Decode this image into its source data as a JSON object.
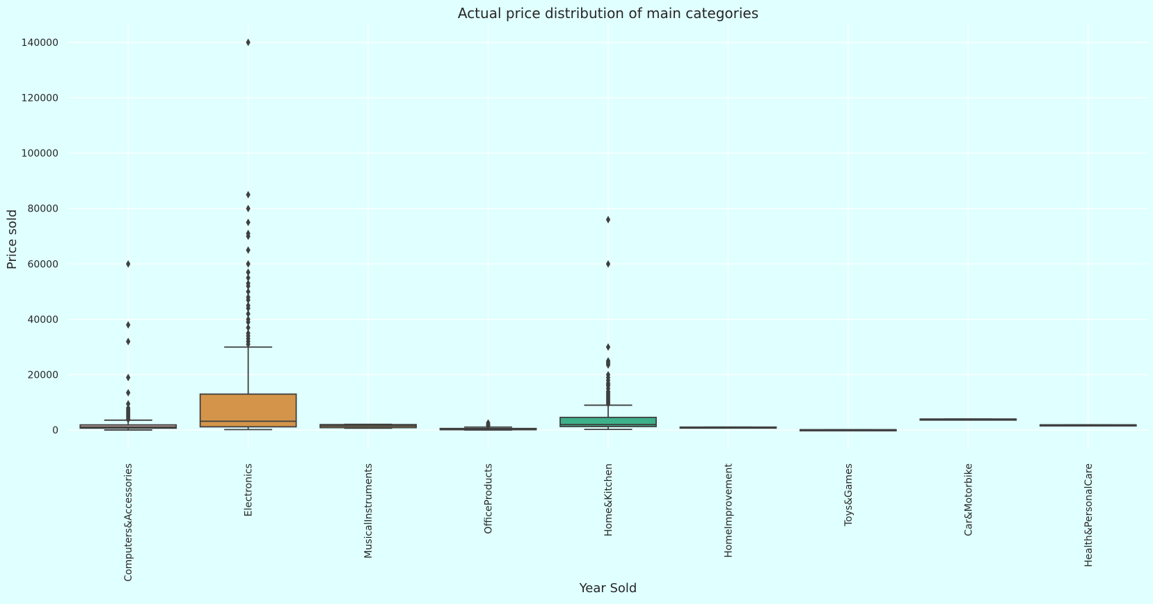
{
  "chart_data": {
    "type": "box",
    "title": "Actual price distribution of main categories",
    "xlabel": "Year Sold",
    "ylabel": "Price sold",
    "ylim": [
      -7000,
      147000
    ],
    "yticks": [
      0,
      20000,
      40000,
      60000,
      80000,
      100000,
      120000,
      140000
    ],
    "ytick_labels": [
      "0",
      "20000",
      "40000",
      "60000",
      "80000",
      "100000",
      "120000",
      "140000"
    ],
    "grid": true,
    "legend": "none",
    "colors": {
      "background": "#e0ffff",
      "grid": "#ffffff",
      "text": "#262626",
      "line": "#3f3f3f"
    },
    "categories": [
      {
        "name": "Computers&Accessories",
        "color": "#c4a3a0",
        "q1": 700,
        "median": 1100,
        "q3": 1900,
        "whisker_low": 50,
        "whisker_high": 3600,
        "outliers": [
          60000,
          38000,
          32000,
          19000,
          13500,
          9500,
          8000,
          7500,
          7000,
          6500,
          6000,
          5500,
          5000,
          4500,
          4000,
          3800
        ]
      },
      {
        "name": "Electronics",
        "color": "#d4954a",
        "q1": 1200,
        "median": 3200,
        "q3": 13000,
        "whisker_low": 200,
        "whisker_high": 30000,
        "outliers": [
          140000,
          85000,
          80000,
          75000,
          71000,
          70000,
          65000,
          60000,
          57000,
          55000,
          53000,
          52000,
          50000,
          48000,
          47000,
          45000,
          44000,
          42000,
          40000,
          39000,
          37000,
          35000,
          34000,
          33000,
          32000,
          31000
        ]
      },
      {
        "name": "MusicalInstruments",
        "color": "#b89a5a",
        "q1": 900,
        "median": 1500,
        "q3": 2000,
        "whisker_low": 700,
        "whisker_high": 2100,
        "outliers": []
      },
      {
        "name": "OfficeProducts",
        "color": "#a5a55c",
        "q1": 150,
        "median": 300,
        "q3": 600,
        "whisker_low": 50,
        "whisker_high": 1100,
        "outliers": [
          1300,
          1600,
          2000,
          2600
        ]
      },
      {
        "name": "Home&Kitchen",
        "color": "#3eb08a",
        "q1": 1300,
        "median": 2000,
        "q3": 4600,
        "whisker_low": 250,
        "whisker_high": 9000,
        "outliers": [
          76000,
          60000,
          30000,
          25000,
          24500,
          24000,
          23500,
          20000,
          19000,
          18000,
          17000,
          16500,
          16000,
          15000,
          14000,
          13500,
          13000,
          12500,
          12000,
          11500,
          11000,
          10500,
          10000,
          9500
        ]
      },
      {
        "name": "HomeImprovement",
        "color": "#3f9faa",
        "q1": 800,
        "median": 900,
        "q3": 1100,
        "whisker_low": 800,
        "whisker_high": 1100,
        "outliers": []
      },
      {
        "name": "Toys&Games",
        "color": "#4aa4c8",
        "q1": 150,
        "median": 150,
        "q3": 150,
        "whisker_low": 150,
        "whisker_high": 150,
        "outliers": []
      },
      {
        "name": "Car&Motorbike",
        "color": "#8aa3d6",
        "q1": 4000,
        "median": 4000,
        "q3": 4000,
        "whisker_low": 4000,
        "whisker_high": 4000,
        "outliers": []
      },
      {
        "name": "Health&PersonalCare",
        "color": "#c59ad6",
        "q1": 1900,
        "median": 1900,
        "q3": 1900,
        "whisker_low": 1900,
        "whisker_high": 1900,
        "outliers": []
      }
    ]
  }
}
